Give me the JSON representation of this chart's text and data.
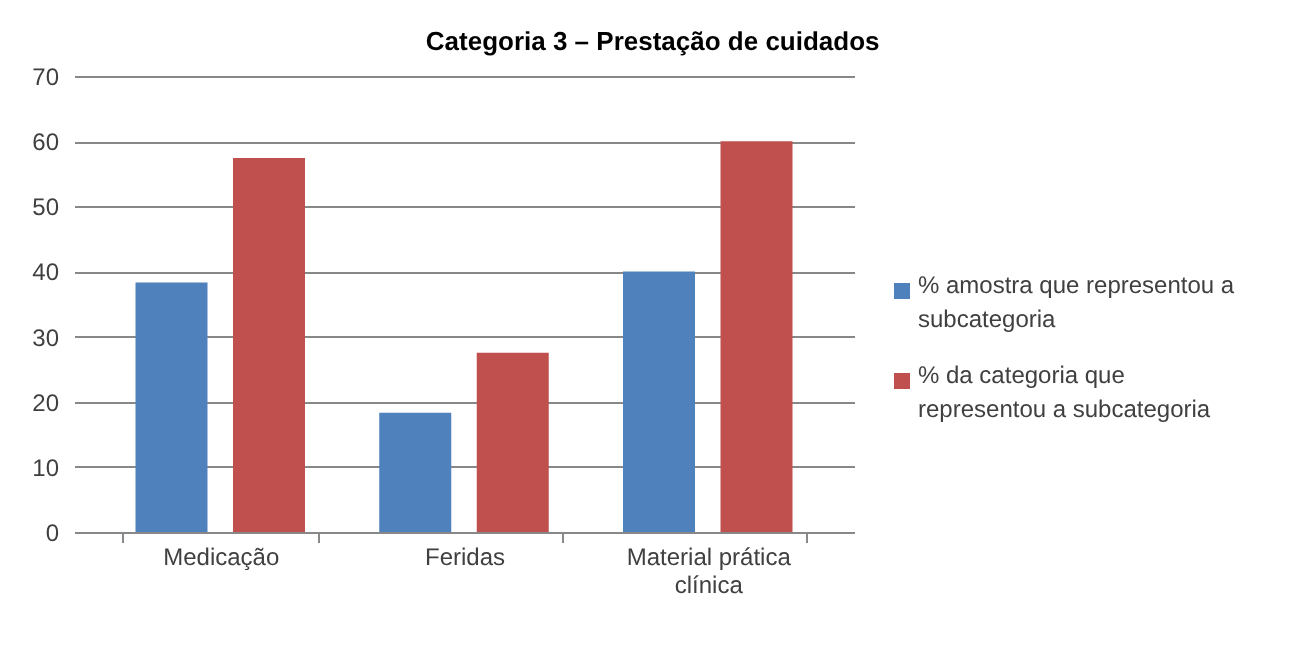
{
  "chart_data": {
    "type": "bar",
    "title": "Categoria 3 – Prestação de cuidados",
    "categories": [
      "Medicação",
      "Feridas",
      "Material prática clínica"
    ],
    "series": [
      {
        "name": "% amostra que representou a subcategoria",
        "color": "#4f81bd",
        "values": [
          38.3,
          18.3,
          40
        ]
      },
      {
        "name": "% da categoria que representou a subcategoria",
        "color": "#c0504d",
        "values": [
          57.4,
          27.5,
          60
        ]
      }
    ],
    "ylim": [
      0,
      70
    ],
    "yticks": [
      0,
      10,
      20,
      30,
      40,
      50,
      60,
      70
    ],
    "grid": "y",
    "legend": "right"
  }
}
